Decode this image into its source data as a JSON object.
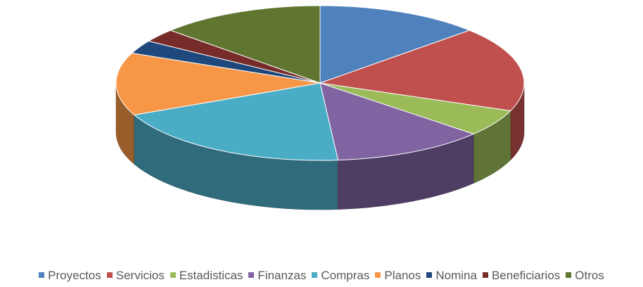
{
  "chart_data": {
    "type": "pie",
    "title": "",
    "three_d": true,
    "legend_position": "bottom",
    "slices": [
      {
        "label": "Proyectos",
        "value": 14,
        "color": "#4F81BD"
      },
      {
        "label": "Servicios",
        "value": 19,
        "color": "#C0504D"
      },
      {
        "label": "Estadisticas",
        "value": 6,
        "color": "#9BBB59"
      },
      {
        "label": "Finanzas",
        "value": 13,
        "color": "#8064A2"
      },
      {
        "label": "Compras",
        "value": 21,
        "color": "#4BACC6"
      },
      {
        "label": "Planos",
        "value": 14,
        "color": "#F79646"
      },
      {
        "label": "Nomina",
        "value": 3,
        "color": "#1F497D"
      },
      {
        "label": "Beneficiarios",
        "value": 3,
        "color": "#772C2A"
      },
      {
        "label": "Otros",
        "value": 14,
        "color": "#5F7530"
      }
    ]
  }
}
